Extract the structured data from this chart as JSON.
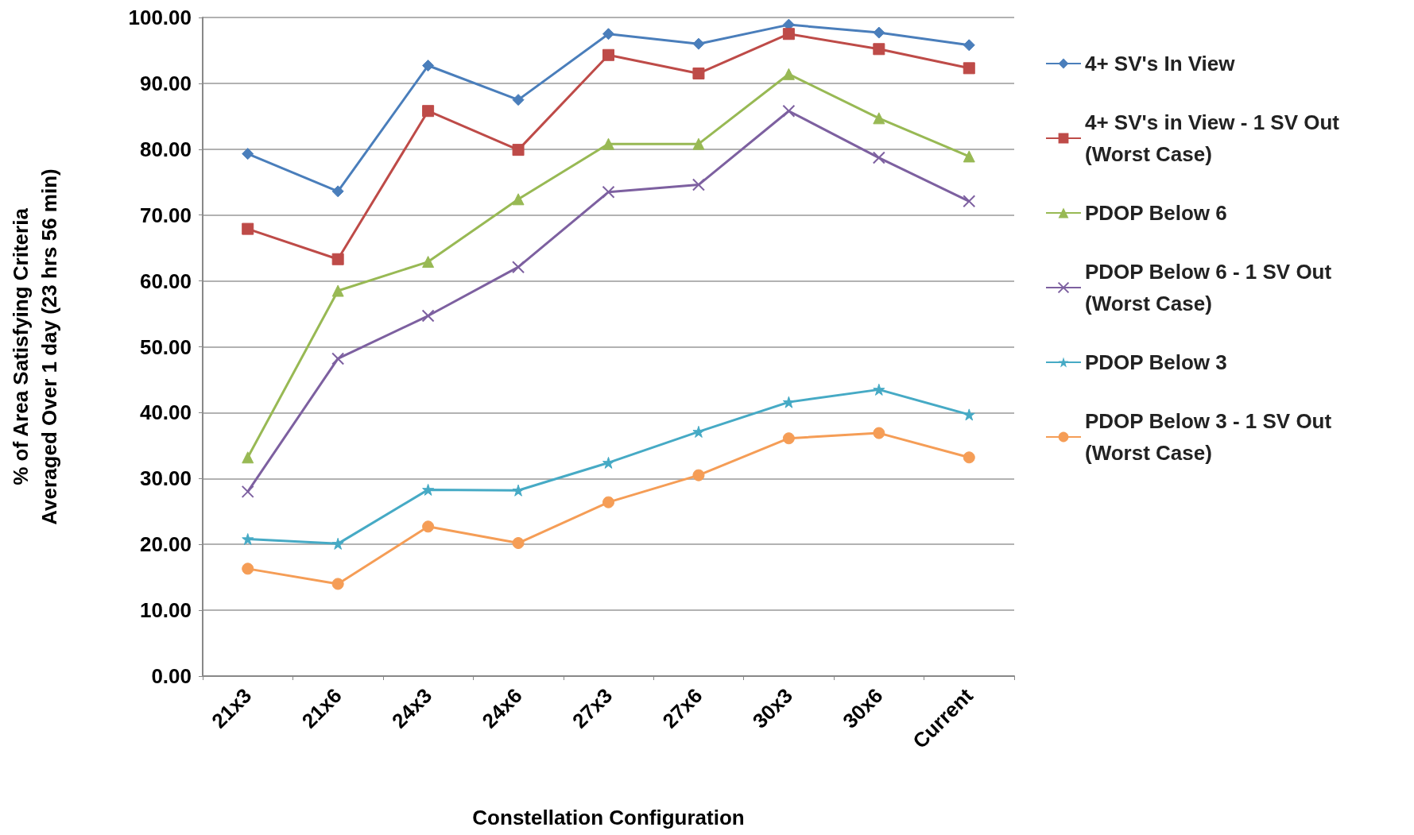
{
  "chart_data": {
    "type": "line",
    "xlabel": "Constellation Configuration",
    "ylabel": "% of Area Satisfying Criteria\nAveraged Over 1 day (23 hrs 56 min)",
    "categories": [
      "21x3",
      "21x6",
      "24x3",
      "24x6",
      "27x3",
      "27x6",
      "30x3",
      "30x6",
      "Current"
    ],
    "ylim": [
      0,
      100
    ],
    "yticks": [
      {
        "value": 0,
        "label": "0.00"
      },
      {
        "value": 10,
        "label": "10.00"
      },
      {
        "value": 20,
        "label": "20.00"
      },
      {
        "value": 30,
        "label": "30.00"
      },
      {
        "value": 40,
        "label": "40.00"
      },
      {
        "value": 50,
        "label": "50.00"
      },
      {
        "value": 60,
        "label": "60.00"
      },
      {
        "value": 70,
        "label": "70.00"
      },
      {
        "value": 80,
        "label": "80.00"
      },
      {
        "value": 90,
        "label": "90.00"
      },
      {
        "value": 100,
        "label": "100.00"
      }
    ],
    "grid": "y",
    "legend": "right",
    "line_style": "solid",
    "series": [
      {
        "name": "4+ SV's In View",
        "color": "#4a7ebb",
        "marker": "diamond",
        "values": [
          79.3,
          73.6,
          92.7,
          87.5,
          97.5,
          96.0,
          98.9,
          97.7,
          95.8
        ]
      },
      {
        "name": "4+ SV's in View - 1 SV Out\n(Worst Case)",
        "color": "#be4b48",
        "marker": "square",
        "values": [
          67.9,
          63.3,
          85.8,
          79.9,
          94.3,
          91.5,
          97.5,
          95.2,
          92.3
        ]
      },
      {
        "name": "PDOP Below 6",
        "color": "#98b954",
        "marker": "triangle",
        "values": [
          33.2,
          58.5,
          62.9,
          72.4,
          80.8,
          80.8,
          91.4,
          84.7,
          78.9
        ]
      },
      {
        "name": "PDOP Below 6 - 1 SV Out\n(Worst Case)",
        "color": "#7d60a0",
        "marker": "cross",
        "values": [
          28.0,
          48.2,
          54.7,
          62.1,
          73.5,
          74.6,
          85.8,
          78.7,
          72.1
        ]
      },
      {
        "name": "PDOP Below 3",
        "color": "#46aac5",
        "marker": "star",
        "values": [
          20.8,
          20.1,
          28.3,
          28.2,
          32.4,
          37.1,
          41.6,
          43.5,
          39.7
        ]
      },
      {
        "name": "PDOP Below 3 - 1 SV Out\n(Worst Case)",
        "color": "#f59d56",
        "marker": "circle",
        "values": [
          16.3,
          14.0,
          22.7,
          20.2,
          26.4,
          30.5,
          36.1,
          36.9,
          33.2
        ]
      }
    ]
  }
}
